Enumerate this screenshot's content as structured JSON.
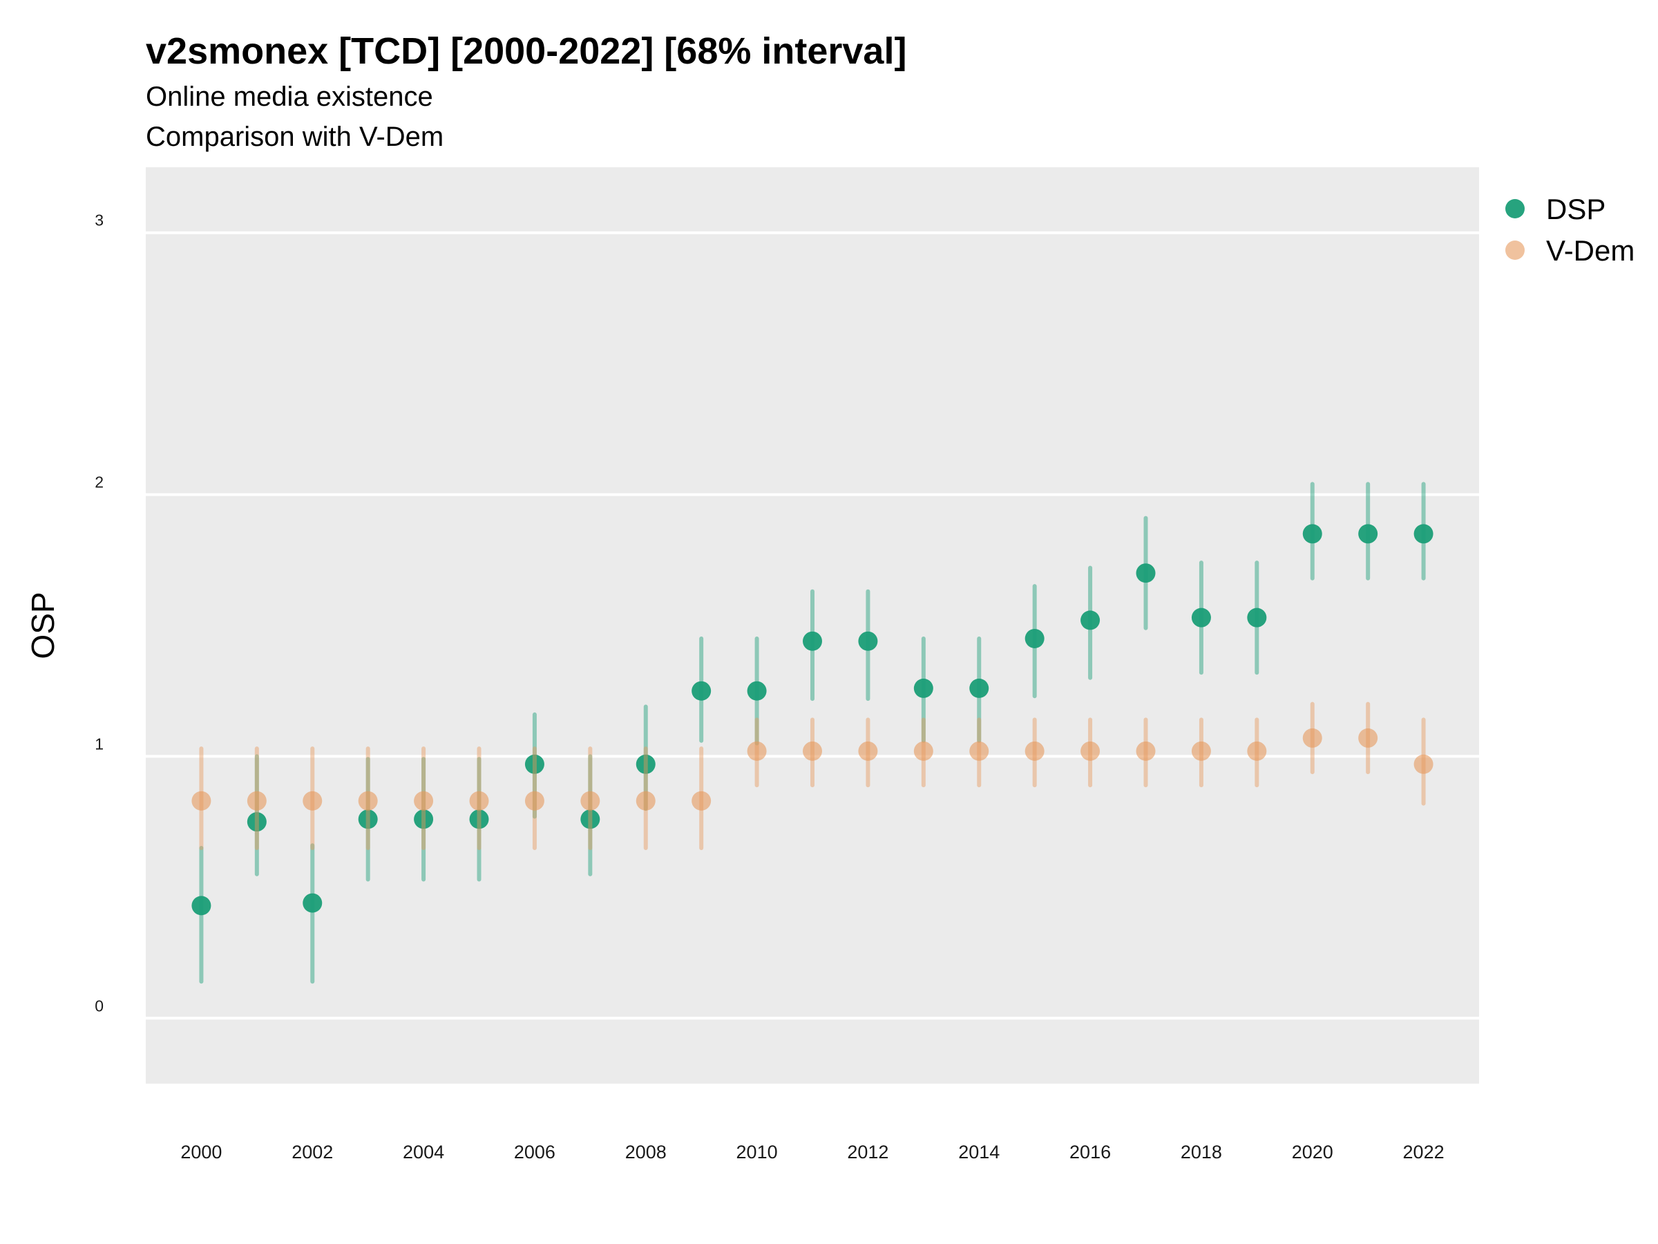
{
  "chart_data": {
    "type": "scatter",
    "title": "v2smonex [TCD] [2000-2022] [68% interval]",
    "subtitle": "Online media existence",
    "subtitle2": "Comparison with V-Dem",
    "xlabel": "",
    "ylabel": "OSP",
    "xlim": [
      1999,
      2023
    ],
    "ylim": [
      -0.25,
      3.25
    ],
    "yticks": [
      "0",
      "1",
      "2",
      "3"
    ],
    "xticks": [
      "2000",
      "2002",
      "2004",
      "2006",
      "2008",
      "2010",
      "2012",
      "2014",
      "2016",
      "2018",
      "2020",
      "2022"
    ],
    "grid": true,
    "legend_position": "top-right",
    "series": [
      {
        "name": "DSP",
        "color": "#1b9e77",
        "points": [
          {
            "x": 2000,
            "y": 0.43,
            "low": 0.14,
            "high": 0.65
          },
          {
            "x": 2001,
            "y": 0.75,
            "low": 0.55,
            "high": 1.0
          },
          {
            "x": 2002,
            "y": 0.44,
            "low": 0.14,
            "high": 0.66
          },
          {
            "x": 2003,
            "y": 0.76,
            "low": 0.53,
            "high": 0.99
          },
          {
            "x": 2004,
            "y": 0.76,
            "low": 0.53,
            "high": 0.99
          },
          {
            "x": 2005,
            "y": 0.76,
            "low": 0.53,
            "high": 0.99
          },
          {
            "x": 2006,
            "y": 0.97,
            "low": 0.77,
            "high": 1.16
          },
          {
            "x": 2007,
            "y": 0.76,
            "low": 0.55,
            "high": 1.0
          },
          {
            "x": 2008,
            "y": 0.97,
            "low": 0.8,
            "high": 1.19
          },
          {
            "x": 2009,
            "y": 1.25,
            "low": 1.06,
            "high": 1.45
          },
          {
            "x": 2010,
            "y": 1.25,
            "low": 1.05,
            "high": 1.45
          },
          {
            "x": 2011,
            "y": 1.44,
            "low": 1.22,
            "high": 1.63
          },
          {
            "x": 2012,
            "y": 1.44,
            "low": 1.22,
            "high": 1.63
          },
          {
            "x": 2013,
            "y": 1.26,
            "low": 1.06,
            "high": 1.45
          },
          {
            "x": 2014,
            "y": 1.26,
            "low": 1.06,
            "high": 1.45
          },
          {
            "x": 2015,
            "y": 1.45,
            "low": 1.23,
            "high": 1.65
          },
          {
            "x": 2016,
            "y": 1.52,
            "low": 1.3,
            "high": 1.72
          },
          {
            "x": 2017,
            "y": 1.7,
            "low": 1.49,
            "high": 1.91
          },
          {
            "x": 2018,
            "y": 1.53,
            "low": 1.32,
            "high": 1.74
          },
          {
            "x": 2019,
            "y": 1.53,
            "low": 1.32,
            "high": 1.74
          },
          {
            "x": 2020,
            "y": 1.85,
            "low": 1.68,
            "high": 2.04
          },
          {
            "x": 2021,
            "y": 1.85,
            "low": 1.68,
            "high": 2.04
          },
          {
            "x": 2022,
            "y": 1.85,
            "low": 1.68,
            "high": 2.04
          }
        ]
      },
      {
        "name": "V-Dem",
        "color": "#e69a5e",
        "points": [
          {
            "x": 2000,
            "y": 0.83,
            "low": 0.65,
            "high": 1.03
          },
          {
            "x": 2001,
            "y": 0.83,
            "low": 0.65,
            "high": 1.03
          },
          {
            "x": 2002,
            "y": 0.83,
            "low": 0.65,
            "high": 1.03
          },
          {
            "x": 2003,
            "y": 0.83,
            "low": 0.65,
            "high": 1.03
          },
          {
            "x": 2004,
            "y": 0.83,
            "low": 0.65,
            "high": 1.03
          },
          {
            "x": 2005,
            "y": 0.83,
            "low": 0.65,
            "high": 1.03
          },
          {
            "x": 2006,
            "y": 0.83,
            "low": 0.65,
            "high": 1.03
          },
          {
            "x": 2007,
            "y": 0.83,
            "low": 0.65,
            "high": 1.03
          },
          {
            "x": 2008,
            "y": 0.83,
            "low": 0.65,
            "high": 1.03
          },
          {
            "x": 2009,
            "y": 0.83,
            "low": 0.65,
            "high": 1.03
          },
          {
            "x": 2010,
            "y": 1.02,
            "low": 0.89,
            "high": 1.14
          },
          {
            "x": 2011,
            "y": 1.02,
            "low": 0.89,
            "high": 1.14
          },
          {
            "x": 2012,
            "y": 1.02,
            "low": 0.89,
            "high": 1.14
          },
          {
            "x": 2013,
            "y": 1.02,
            "low": 0.89,
            "high": 1.14
          },
          {
            "x": 2014,
            "y": 1.02,
            "low": 0.89,
            "high": 1.14
          },
          {
            "x": 2015,
            "y": 1.02,
            "low": 0.89,
            "high": 1.14
          },
          {
            "x": 2016,
            "y": 1.02,
            "low": 0.89,
            "high": 1.14
          },
          {
            "x": 2017,
            "y": 1.02,
            "low": 0.89,
            "high": 1.14
          },
          {
            "x": 2018,
            "y": 1.02,
            "low": 0.89,
            "high": 1.14
          },
          {
            "x": 2019,
            "y": 1.02,
            "low": 0.89,
            "high": 1.14
          },
          {
            "x": 2020,
            "y": 1.07,
            "low": 0.94,
            "high": 1.2
          },
          {
            "x": 2021,
            "y": 1.07,
            "low": 0.94,
            "high": 1.2
          },
          {
            "x": 2022,
            "y": 0.97,
            "low": 0.82,
            "high": 1.14
          }
        ]
      }
    ]
  }
}
